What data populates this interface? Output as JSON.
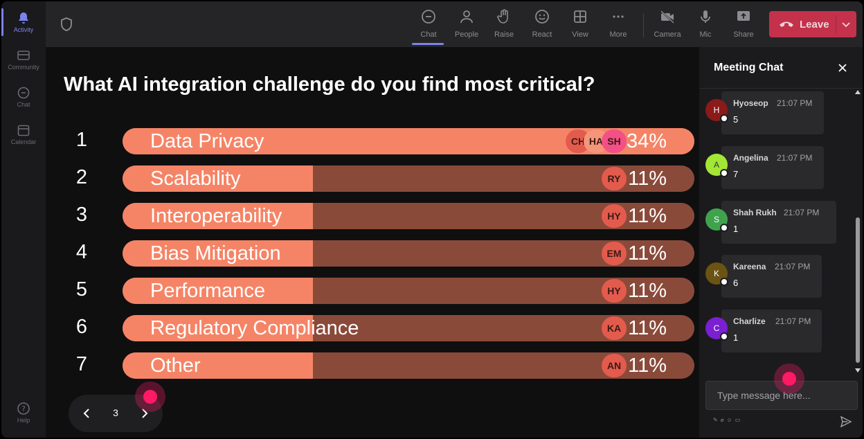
{
  "rail": {
    "items": [
      {
        "label": "Activity",
        "icon": "bell-icon",
        "active": true
      },
      {
        "label": "Community",
        "icon": "community-icon",
        "active": false
      },
      {
        "label": "Chat",
        "icon": "chat-icon",
        "active": false
      },
      {
        "label": "Calendar",
        "icon": "calendar-icon",
        "active": false
      }
    ],
    "help_label": "Help"
  },
  "toolbar": {
    "buttons": [
      {
        "label": "Chat",
        "icon": "chat-icon",
        "active": true
      },
      {
        "label": "People",
        "icon": "people-icon"
      },
      {
        "label": "Raise",
        "icon": "raise-hand-icon"
      },
      {
        "label": "React",
        "icon": "react-icon"
      },
      {
        "label": "View",
        "icon": "view-grid-icon"
      },
      {
        "label": "More",
        "icon": "more-icon"
      },
      {
        "label": "Camera",
        "icon": "camera-off-icon"
      },
      {
        "label": "Mic",
        "icon": "mic-icon"
      },
      {
        "label": "Share",
        "icon": "share-icon"
      }
    ],
    "leave_label": "Leave"
  },
  "poll": {
    "question": "What AI integration challenge do you find most critical?",
    "options": [
      {
        "num": "1",
        "label": "Data Privacy",
        "percent": "34%",
        "fill": 1.0,
        "voters": [
          "CH",
          "HA",
          "SH"
        ]
      },
      {
        "num": "2",
        "label": "Scalability",
        "percent": "11%",
        "fill": 0.333,
        "voters": [
          "RY"
        ]
      },
      {
        "num": "3",
        "label": "Interoperability",
        "percent": "11%",
        "fill": 0.333,
        "voters": [
          "HY"
        ]
      },
      {
        "num": "4",
        "label": "Bias Mitigation",
        "percent": "11%",
        "fill": 0.333,
        "voters": [
          "EM"
        ]
      },
      {
        "num": "5",
        "label": "Performance",
        "percent": "11%",
        "fill": 0.333,
        "voters": [
          "HY"
        ]
      },
      {
        "num": "6",
        "label": "Regulatory Compliance",
        "percent": "11%",
        "fill": 0.333,
        "voters": [
          "KA"
        ]
      },
      {
        "num": "7",
        "label": "Other",
        "percent": "11%",
        "fill": 0.333,
        "voters": [
          "AN"
        ]
      }
    ],
    "page": "3"
  },
  "chat": {
    "title": "Meeting Chat",
    "messages": [
      {
        "initial": "H",
        "name": "Hyoseop",
        "time": "21:07 PM",
        "text": "5",
        "color": "#8b1a1a"
      },
      {
        "initial": "A",
        "name": "Angelina",
        "time": "21:07 PM",
        "text": "7",
        "color": "#a3e635"
      },
      {
        "initial": "S",
        "name": "Shah Rukh",
        "time": "21:07 PM",
        "text": "1",
        "color": "#3fa34d"
      },
      {
        "initial": "K",
        "name": "Kareena",
        "time": "21:07 PM",
        "text": "6",
        "color": "#6b5314"
      },
      {
        "initial": "C",
        "name": "Charlize",
        "time": "21:07 PM",
        "text": "1",
        "color": "#7a1fd1"
      }
    ],
    "placeholder": "Type message here..."
  },
  "colors": {
    "accent": "#7b83eb",
    "bar_fill": "#f58466",
    "bar_track": "#8a4a3a",
    "leave": "#c4314b",
    "pointer": "#ff1a66"
  }
}
